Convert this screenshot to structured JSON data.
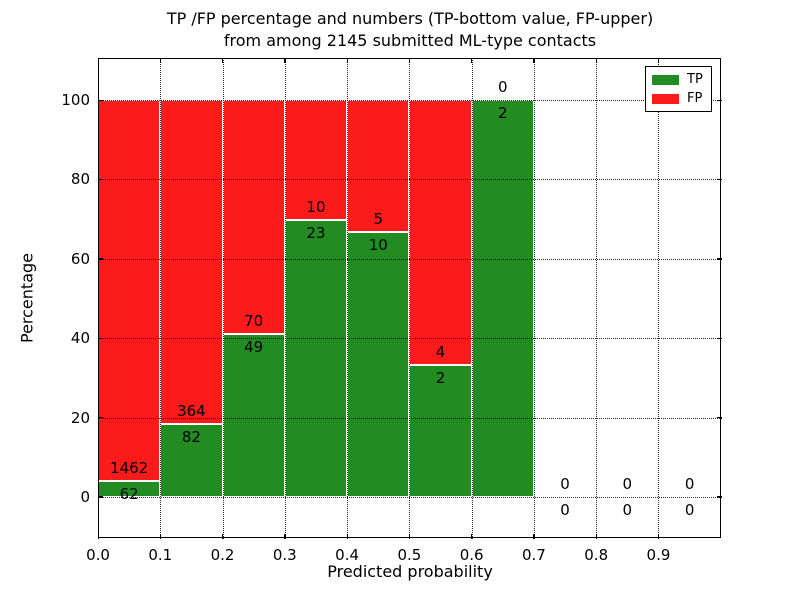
{
  "title": {
    "line1": "TP /FP percentage and numbers (TP-bottom value, FP-upper)",
    "line2": "from among 2145 submitted ML-type contacts"
  },
  "chart_data": {
    "type": "bar",
    "stacked": true,
    "title": "TP /FP percentage and numbers (TP-bottom value, FP-upper) from among 2145 submitted ML-type contacts",
    "xlabel": "Predicted probability",
    "ylabel": "Percentage",
    "total_contacts": 2145,
    "bin_width": 0.1,
    "bin_starts": [
      0.0,
      0.1,
      0.2,
      0.3,
      0.4,
      0.5,
      0.6,
      0.7,
      0.8,
      0.9
    ],
    "series": [
      {
        "name": "TP",
        "color": "#228b22",
        "counts": [
          62,
          82,
          49,
          23,
          10,
          2,
          2,
          0,
          0,
          0
        ]
      },
      {
        "name": "FP",
        "color": "#fb1b1b",
        "counts": [
          1462,
          364,
          70,
          10,
          5,
          4,
          0,
          0,
          0,
          0
        ]
      }
    ],
    "tp_percent": [
      4.07,
      18.39,
      41.18,
      69.7,
      66.67,
      33.33,
      100.0,
      0,
      0,
      0
    ],
    "yticks": [
      "0",
      "20",
      "40",
      "60",
      "80",
      "100"
    ],
    "ytick_values": [
      0,
      20,
      40,
      60,
      80,
      100
    ],
    "xtick_labels": [
      "0.0",
      "0.1",
      "0.2",
      "0.3",
      "0.4",
      "0.5",
      "0.6",
      "0.7",
      "0.8",
      "0.9"
    ],
    "xtick_values": [
      0.0,
      0.1,
      0.2,
      0.3,
      0.4,
      0.5,
      0.6,
      0.7,
      0.8,
      0.9
    ],
    "ylim": [
      -10.6,
      110.6
    ],
    "xlim": [
      0,
      1.002
    ],
    "grid": true,
    "grid_style": "dotted",
    "legend": {
      "position": "upper right",
      "entries": [
        {
          "label": "TP",
          "color": "#228b22"
        },
        {
          "label": "FP",
          "color": "#fb1b1b"
        }
      ]
    },
    "label_rule": "FP count printed above TP/FP boundary, TP count printed below boundary; empty bins show 0 above and 0 below the 0% line"
  }
}
